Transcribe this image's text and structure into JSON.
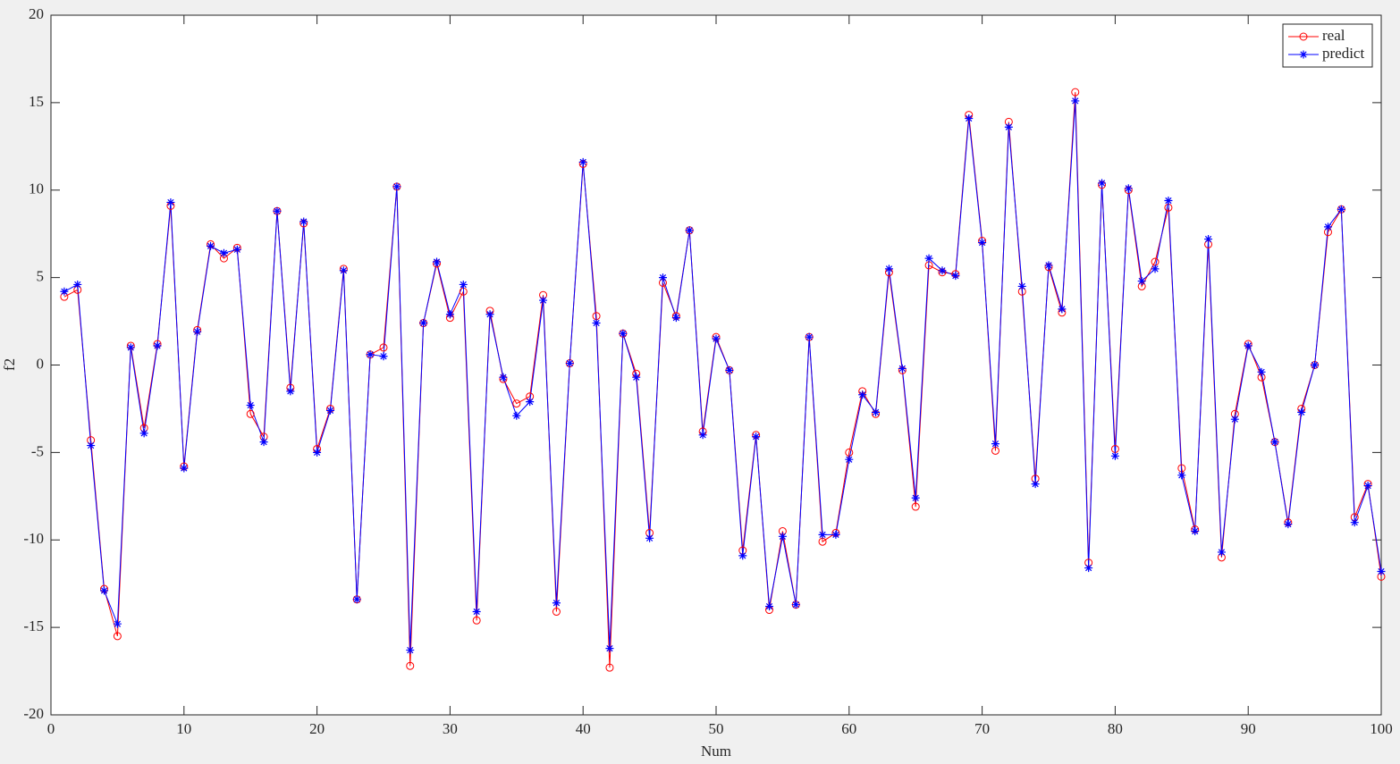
{
  "chart_data": {
    "type": "line",
    "xlabel": "Num",
    "ylabel": "f2",
    "x": [
      1,
      2,
      3,
      4,
      5,
      6,
      7,
      8,
      9,
      10,
      11,
      12,
      13,
      14,
      15,
      16,
      17,
      18,
      19,
      20,
      21,
      22,
      23,
      24,
      25,
      26,
      27,
      28,
      29,
      30,
      31,
      32,
      33,
      34,
      35,
      36,
      37,
      38,
      39,
      40,
      41,
      42,
      43,
      44,
      45,
      46,
      47,
      48,
      49,
      50,
      51,
      52,
      53,
      54,
      55,
      56,
      57,
      58,
      59,
      60,
      61,
      62,
      63,
      64,
      65,
      66,
      67,
      68,
      69,
      70,
      71,
      72,
      73,
      74,
      75,
      76,
      77,
      78,
      79,
      80,
      81,
      82,
      83,
      84,
      85,
      86,
      87,
      88,
      89,
      90,
      91,
      92,
      93,
      94,
      95,
      96,
      97,
      98,
      99,
      100
    ],
    "series": [
      {
        "name": "real",
        "color": "#ff0000",
        "marker": "o",
        "values": [
          3.9,
          4.3,
          -4.3,
          -12.8,
          -15.5,
          1.1,
          -3.6,
          1.2,
          9.1,
          -5.8,
          2.0,
          6.9,
          6.1,
          6.7,
          -2.8,
          -4.1,
          8.8,
          -1.3,
          8.1,
          -4.8,
          -2.5,
          5.5,
          -13.4,
          0.6,
          1.0,
          10.2,
          -17.2,
          2.4,
          5.8,
          2.7,
          4.2,
          -14.6,
          3.1,
          -0.8,
          -2.2,
          -1.8,
          4.0,
          -14.1,
          0.1,
          11.5,
          2.8,
          -17.3,
          1.8,
          -0.5,
          -9.6,
          4.7,
          2.8,
          7.7,
          -3.8,
          1.6,
          -0.3,
          -10.6,
          -4.0,
          -14.0,
          -9.5,
          -13.7,
          1.6,
          -10.1,
          -9.6,
          -5.0,
          -1.5,
          -2.8,
          5.3,
          -0.3,
          -8.1,
          5.7,
          5.3,
          5.2,
          14.3,
          7.1,
          -4.9,
          13.9,
          4.2,
          -6.5,
          5.6,
          3.0,
          15.6,
          -11.3,
          10.3,
          -4.8,
          10.0,
          4.5,
          5.9,
          9.0,
          -5.9,
          -9.4,
          6.9,
          -11.0,
          -2.8,
          1.2,
          -0.7,
          -4.4,
          -9.0,
          -2.5,
          0.0,
          7.6,
          8.9,
          -8.7,
          -6.8,
          -12.1
        ]
      },
      {
        "name": "predict",
        "color": "#0000ff",
        "marker": "*",
        "values": [
          4.2,
          4.6,
          -4.6,
          -12.9,
          -14.8,
          1.0,
          -3.9,
          1.1,
          9.3,
          -5.9,
          1.9,
          6.8,
          6.4,
          6.6,
          -2.3,
          -4.4,
          8.8,
          -1.5,
          8.2,
          -5.0,
          -2.6,
          5.4,
          -13.4,
          0.6,
          0.5,
          10.2,
          -16.3,
          2.4,
          5.9,
          2.9,
          4.6,
          -14.1,
          2.9,
          -0.7,
          -2.9,
          -2.1,
          3.7,
          -13.6,
          0.1,
          11.6,
          2.4,
          -16.2,
          1.8,
          -0.7,
          -9.9,
          5.0,
          2.7,
          7.7,
          -4.0,
          1.5,
          -0.3,
          -10.9,
          -4.1,
          -13.8,
          -9.8,
          -13.7,
          1.6,
          -9.7,
          -9.7,
          -5.4,
          -1.7,
          -2.7,
          5.5,
          -0.2,
          -7.6,
          6.1,
          5.4,
          5.1,
          14.1,
          7.0,
          -4.5,
          13.6,
          4.5,
          -6.8,
          5.7,
          3.2,
          15.1,
          -11.6,
          10.4,
          -5.2,
          10.1,
          4.8,
          5.5,
          9.4,
          -6.3,
          -9.5,
          7.2,
          -10.7,
          -3.1,
          1.1,
          -0.4,
          -4.4,
          -9.1,
          -2.7,
          0.0,
          7.9,
          8.9,
          -9.0,
          -6.9,
          -11.8
        ]
      }
    ],
    "xlim": [
      0,
      100
    ],
    "xticks": [
      0,
      10,
      20,
      30,
      40,
      50,
      60,
      70,
      80,
      90,
      100
    ],
    "ylim": [
      -20,
      20
    ],
    "yticks": [
      -20,
      -15,
      -10,
      -5,
      0,
      5,
      10,
      15,
      20
    ],
    "grid": false,
    "legend": "upper right"
  }
}
